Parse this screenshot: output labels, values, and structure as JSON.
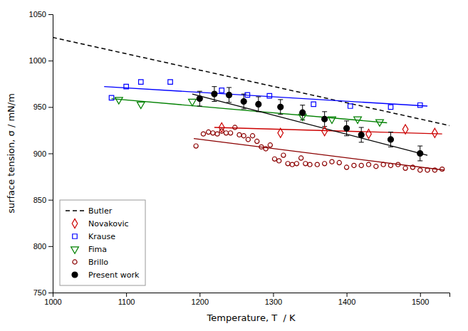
{
  "chart_data": {
    "type": "scatter",
    "xlabel": "Temperature, T  / K",
    "ylabel": "surface tension, σ / mN/m",
    "xlim": [
      1000,
      1540
    ],
    "ylim": [
      750,
      1050
    ],
    "xticks": [
      1000,
      1100,
      1200,
      1300,
      1400,
      1500
    ],
    "yticks": [
      750,
      800,
      850,
      900,
      950,
      1000,
      1050
    ],
    "grid": false,
    "legend": "lower left",
    "series": [
      {
        "name": "Butler",
        "type": "line",
        "line_style": "dashed",
        "color": "black",
        "x": [
          1000,
          1540
        ],
        "values": [
          1025,
          930
        ]
      },
      {
        "name": "Novakovic",
        "type": "scatter",
        "marker": "open-diamond",
        "color": "#cc0000",
        "x": [
          1230,
          1310,
          1370,
          1430,
          1480,
          1520
        ],
        "values": [
          928,
          922,
          924,
          921,
          926,
          922
        ],
        "trend": {
          "x": [
            1220,
            1530
          ],
          "values": [
            928,
            921
          ]
        }
      },
      {
        "name": "Krause",
        "type": "scatter",
        "marker": "open-square",
        "color": "blue",
        "x": [
          1080,
          1100,
          1120,
          1160,
          1230,
          1265,
          1295,
          1355,
          1405,
          1460,
          1500
        ],
        "values": [
          960,
          972,
          977,
          977,
          968,
          963,
          962,
          953,
          951,
          950,
          952
        ],
        "trend": {
          "x": [
            1070,
            1510
          ],
          "values": [
            972,
            951
          ]
        }
      },
      {
        "name": "Fima",
        "type": "scatter",
        "marker": "open-triangle-down",
        "color": "green",
        "x": [
          1090,
          1120,
          1190,
          1340,
          1380,
          1415,
          1445
        ],
        "values": [
          958,
          953,
          956,
          940,
          937,
          937,
          934
        ],
        "trend": {
          "x": [
            1080,
            1455
          ],
          "values": [
            959,
            933
          ]
        }
      },
      {
        "name": "Brillo",
        "type": "scatter",
        "marker": "open-circle",
        "color": "#8B0000",
        "x": [
          1195,
          1205,
          1212,
          1218,
          1224,
          1230,
          1236,
          1242,
          1248,
          1254,
          1260,
          1266,
          1272,
          1278,
          1284,
          1290,
          1296,
          1302,
          1308,
          1314,
          1320,
          1326,
          1332,
          1338,
          1344,
          1350,
          1360,
          1370,
          1380,
          1390,
          1400,
          1410,
          1420,
          1430,
          1440,
          1450,
          1460,
          1470,
          1480,
          1490,
          1500,
          1510,
          1520,
          1530
        ],
        "values": [
          908,
          921,
          923,
          922,
          921,
          924,
          922,
          922,
          928,
          920,
          919,
          915,
          919,
          913,
          907,
          905,
          909,
          894,
          892,
          898,
          889,
          888,
          889,
          895,
          889,
          888,
          888,
          889,
          891,
          890,
          885,
          887,
          887,
          888,
          886,
          888,
          887,
          888,
          884,
          885,
          882,
          882,
          882,
          883
        ],
        "trend": {
          "x": [
            1192,
            1533
          ],
          "values": [
            916,
            882
          ]
        }
      },
      {
        "name": "Present work",
        "type": "scatter",
        "marker": "circle",
        "color": "black",
        "x": [
          1200,
          1220,
          1240,
          1260,
          1280,
          1310,
          1340,
          1370,
          1400,
          1420,
          1460,
          1500
        ],
        "values": [
          959,
          964,
          963,
          956,
          953,
          950,
          944,
          937,
          927,
          920,
          915,
          900
        ],
        "errors": [
          8,
          8,
          8,
          8,
          8,
          8,
          8,
          8,
          8,
          8,
          8,
          8
        ],
        "trend": {
          "x": [
            1190,
            1510
          ],
          "values": [
            964,
            898
          ]
        }
      }
    ]
  }
}
